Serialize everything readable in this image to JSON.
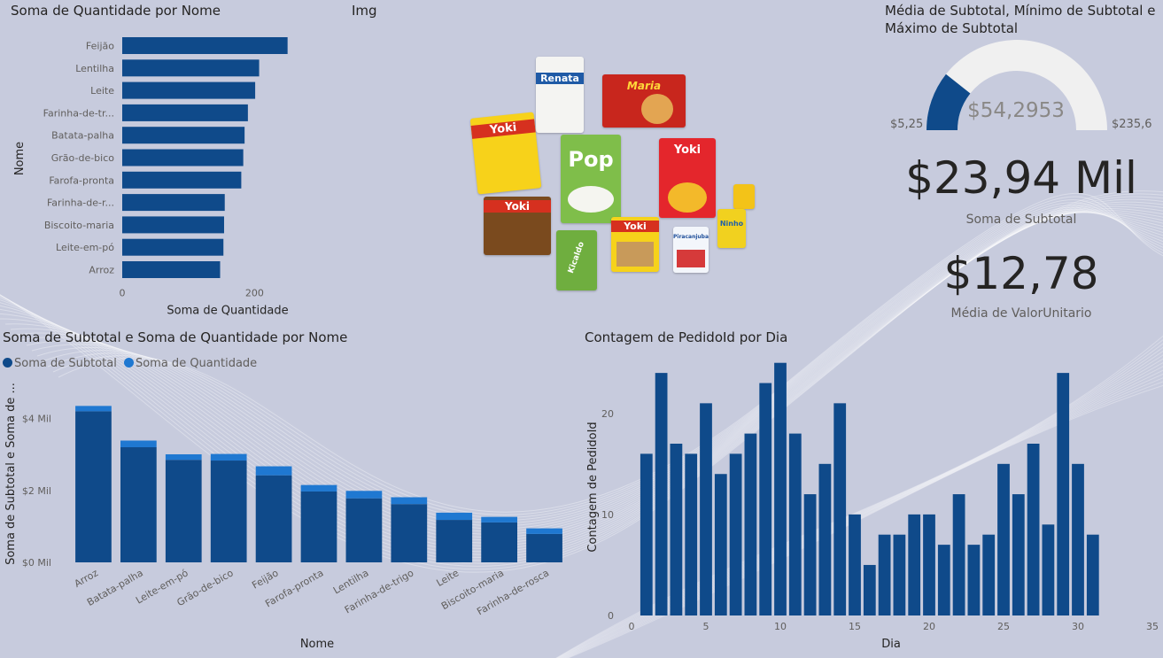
{
  "colors": {
    "bar": "#0f4a8a",
    "bar2": "#1f78d1",
    "gauge_fill": "#0f4a8a",
    "gauge_track": "#f0f0f0",
    "background": "#c7cbdd"
  },
  "panel_img": {
    "title": "Img",
    "products": [
      "Renata",
      "Maria",
      "Yoki",
      "Pop",
      "Yoki",
      "Yoki",
      "Yoki",
      "Kicaldo",
      "Yoki",
      "Piracanjuba",
      "Ninho",
      "Yoki"
    ]
  },
  "gauge": {
    "title": "Média de Subtotal, Mínimo de Subtotal e Máximo de Subtotal",
    "value_label": "$54,2953",
    "min_label": "$5,25",
    "max_label": "$235,6",
    "min": 5.25,
    "max": 235.6,
    "value": 54.2953
  },
  "kpi1": {
    "value": "$23,94 Mil",
    "label": "Soma de Subtotal"
  },
  "kpi2": {
    "value": "$12,78",
    "label": "Média de ValorUnitario"
  },
  "legend": {
    "series1": "Soma de Subtotal",
    "series2": "Soma de Quantidade"
  },
  "chart_data": [
    {
      "type": "bar",
      "orientation": "horizontal",
      "title": "Soma de Quantidade por Nome",
      "xlabel": "Soma de Quantidade",
      "ylabel": "Nome",
      "categories": [
        "Feijão",
        "Lentilha",
        "Leite",
        "Farinha-de-tr...",
        "Batata-palha",
        "Grão-de-bico",
        "Farofa-pronta",
        "Farinha-de-r...",
        "Biscoito-maria",
        "Leite-em-pó",
        "Arroz"
      ],
      "values": [
        250,
        207,
        201,
        190,
        185,
        183,
        180,
        155,
        154,
        153,
        148
      ],
      "xlim": [
        0,
        300
      ],
      "xticks": [
        "0",
        "200"
      ]
    },
    {
      "type": "bar",
      "stacked": true,
      "title": "Soma de Subtotal e Soma de Quantidade por Nome",
      "xlabel": "Nome",
      "ylabel": "Soma de Subtotal e Soma de ...",
      "categories": [
        "Arroz",
        "Batata-palha",
        "Leite-em-pó",
        "Grão-de-bico",
        "Feijão",
        "Farofa-pronta",
        "Lentilha",
        "Farinha-de-trigo",
        "Leite",
        "Biscoito-maria",
        "Farinha-de-rosca"
      ],
      "series": [
        {
          "name": "Soma de Subtotal",
          "values": [
            4200,
            3200,
            2850,
            2830,
            2420,
            1970,
            1780,
            1620,
            1180,
            1110,
            790
          ]
        },
        {
          "name": "Soma de Quantidade",
          "values": [
            148,
            185,
            153,
            183,
            250,
            180,
            207,
            190,
            201,
            154,
            155
          ]
        }
      ],
      "ylim": [
        0,
        4800
      ],
      "yticks": [
        "$0 Mil",
        "$2 Mil",
        "$4 Mil"
      ],
      "legend": "top-left"
    },
    {
      "type": "bar",
      "title": "Contagem de PedidoId por Dia",
      "xlabel": "Dia",
      "ylabel": "Contagem de PedidoId",
      "x": [
        1,
        2,
        3,
        4,
        5,
        6,
        7,
        8,
        9,
        10,
        11,
        12,
        13,
        14,
        15,
        16,
        17,
        18,
        19,
        20,
        21,
        22,
        23,
        24,
        25,
        26,
        27,
        28,
        29,
        30,
        31
      ],
      "values": [
        16,
        24,
        17,
        16,
        21,
        14,
        16,
        18,
        23,
        25,
        18,
        12,
        15,
        21,
        10,
        5,
        8,
        8,
        10,
        10,
        7,
        12,
        7,
        8,
        15,
        12,
        17,
        9,
        24,
        15,
        8
      ],
      "xlim": [
        0,
        35
      ],
      "ylim": [
        0,
        25.5
      ],
      "xticks": [
        "0",
        "5",
        "10",
        "15",
        "20",
        "25",
        "30",
        "35"
      ],
      "yticks": [
        "0",
        "10",
        "20"
      ]
    }
  ]
}
